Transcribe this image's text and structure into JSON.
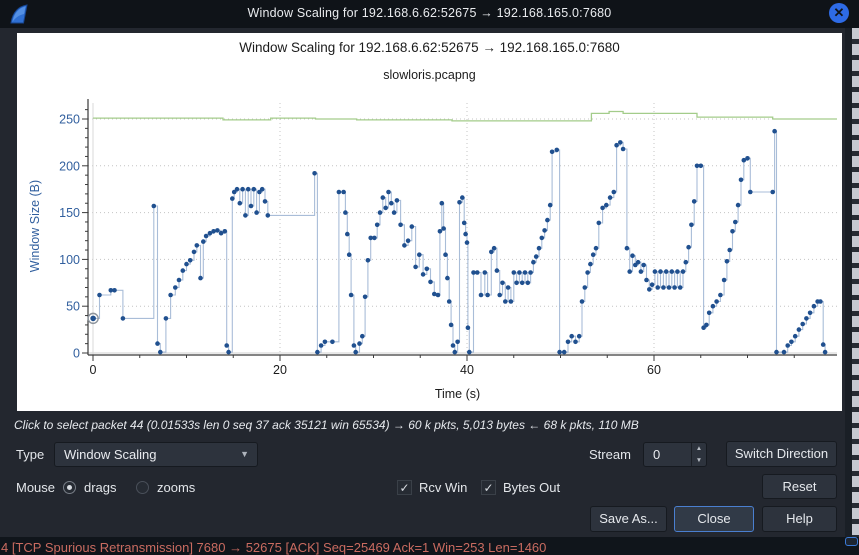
{
  "titlebar": {
    "title": "Window Scaling for 192.168.6.62:52675 → 192.168.165.0:7680",
    "app_icon": "wireshark-fin-icon",
    "close_glyph": "✕"
  },
  "chart_data": {
    "type": "line",
    "title": "Window Scaling for 192.168.6.62:52675 → 192.168.165.0:7680",
    "subtitle": "slowloris.pcapng",
    "xlabel": "Time (s)",
    "ylabel": "Window Size (B)",
    "xlim": [
      0,
      79.5
    ],
    "ylim": [
      0,
      265
    ],
    "x_ticks": [
      0,
      20,
      40,
      60
    ],
    "y_ticks": [
      0,
      50,
      100,
      150,
      200,
      250
    ],
    "x_minor_step": 5,
    "y_minor_step": 10,
    "grid": "dotted",
    "selected_point": [
      0.015,
      37
    ],
    "series": [
      {
        "name": "Rcv Win",
        "style": "step-line",
        "color": "#a3cc8a",
        "points": [
          [
            0,
            251
          ],
          [
            13.6,
            251
          ],
          [
            13.9,
            249
          ],
          [
            19,
            251
          ],
          [
            23.8,
            250
          ],
          [
            28.2,
            249
          ],
          [
            36.4,
            249
          ],
          [
            38.4,
            248
          ],
          [
            52.4,
            248
          ],
          [
            53.3,
            256
          ],
          [
            55.2,
            258
          ],
          [
            56.7,
            256
          ],
          [
            64.6,
            252
          ],
          [
            72.7,
            250
          ],
          [
            79.2,
            250
          ]
        ]
      },
      {
        "name": "Bytes Out",
        "style": "step-dots",
        "color": "#20508f",
        "line_color": "#a9bdd8",
        "points": [
          [
            0,
            37
          ],
          [
            0.7,
            62
          ],
          [
            1.9,
            67
          ],
          [
            2.3,
            67
          ],
          [
            3.2,
            37
          ],
          [
            6.5,
            157
          ],
          [
            6.9,
            10
          ],
          [
            7.2,
            1
          ],
          [
            7.8,
            37
          ],
          [
            8.3,
            62
          ],
          [
            8.8,
            70
          ],
          [
            9.2,
            78
          ],
          [
            9.6,
            88
          ],
          [
            10,
            95
          ],
          [
            10.4,
            99
          ],
          [
            10.8,
            108
          ],
          [
            11.1,
            115
          ],
          [
            11.5,
            80
          ],
          [
            11.8,
            119
          ],
          [
            12.1,
            125
          ],
          [
            12.5,
            128
          ],
          [
            12.9,
            130
          ],
          [
            13.3,
            131
          ],
          [
            13.7,
            128
          ],
          [
            14.1,
            130
          ],
          [
            14.3,
            8
          ],
          [
            14.5,
            1
          ],
          [
            14.9,
            165
          ],
          [
            15.1,
            172
          ],
          [
            15.4,
            175
          ],
          [
            15.7,
            160
          ],
          [
            16,
            175
          ],
          [
            16.3,
            147
          ],
          [
            16.6,
            175
          ],
          [
            16.9,
            157
          ],
          [
            17.2,
            175
          ],
          [
            17.5,
            150
          ],
          [
            17.8,
            172
          ],
          [
            18.1,
            175
          ],
          [
            18.4,
            162
          ],
          [
            18.7,
            147
          ],
          [
            23.7,
            192
          ],
          [
            24,
            1
          ],
          [
            24.4,
            8
          ],
          [
            24.8,
            12
          ],
          [
            25.6,
            12
          ],
          [
            26.3,
            172
          ],
          [
            26.8,
            172
          ],
          [
            27,
            150
          ],
          [
            27.2,
            127
          ],
          [
            27.4,
            105
          ],
          [
            27.6,
            62
          ],
          [
            27.9,
            8
          ],
          [
            28.1,
            1
          ],
          [
            28.5,
            10
          ],
          [
            28.8,
            18
          ],
          [
            29.1,
            60
          ],
          [
            29.4,
            99
          ],
          [
            29.7,
            123
          ],
          [
            30.1,
            123
          ],
          [
            30.4,
            137
          ],
          [
            30.7,
            150
          ],
          [
            31,
            166
          ],
          [
            31.3,
            155
          ],
          [
            31.6,
            172
          ],
          [
            31.9,
            160
          ],
          [
            32.2,
            150
          ],
          [
            32.5,
            163
          ],
          [
            32.9,
            137
          ],
          [
            33.3,
            115
          ],
          [
            33.7,
            120
          ],
          [
            34.1,
            135
          ],
          [
            34.5,
            92
          ],
          [
            34.9,
            105
          ],
          [
            35.3,
            84
          ],
          [
            35.7,
            90
          ],
          [
            36.1,
            76
          ],
          [
            36.5,
            63
          ],
          [
            36.9,
            62
          ],
          [
            37.1,
            130
          ],
          [
            37.3,
            160
          ],
          [
            37.5,
            133
          ],
          [
            37.7,
            105
          ],
          [
            37.9,
            80
          ],
          [
            38.1,
            55
          ],
          [
            38.3,
            30
          ],
          [
            38.5,
            8
          ],
          [
            38.7,
            1
          ],
          [
            39,
            12
          ],
          [
            39.2,
            161
          ],
          [
            39.5,
            166
          ],
          [
            39.7,
            139
          ],
          [
            39.85,
            127
          ],
          [
            40,
            118
          ],
          [
            40.1,
            27
          ],
          [
            40.25,
            1
          ],
          [
            40.7,
            86
          ],
          [
            41.1,
            86
          ],
          [
            41.5,
            62
          ],
          [
            41.9,
            86
          ],
          [
            42.2,
            62
          ],
          [
            42.6,
            108
          ],
          [
            42.9,
            112
          ],
          [
            43.2,
            88
          ],
          [
            43.5,
            62
          ],
          [
            43.8,
            75
          ],
          [
            44.1,
            55
          ],
          [
            44.4,
            70
          ],
          [
            44.7,
            55
          ],
          [
            45,
            86
          ],
          [
            45.3,
            75
          ],
          [
            45.6,
            86
          ],
          [
            45.9,
            75
          ],
          [
            46.2,
            86
          ],
          [
            46.5,
            75
          ],
          [
            46.8,
            86
          ],
          [
            47.1,
            97
          ],
          [
            47.4,
            103
          ],
          [
            47.7,
            112
          ],
          [
            48,
            123
          ],
          [
            48.3,
            131
          ],
          [
            48.6,
            142
          ],
          [
            48.9,
            158
          ],
          [
            49.1,
            215
          ],
          [
            49.6,
            217
          ],
          [
            49.9,
            1
          ],
          [
            50.4,
            1
          ],
          [
            50.8,
            12
          ],
          [
            51.2,
            18
          ],
          [
            51.6,
            12
          ],
          [
            52,
            18
          ],
          [
            52.3,
            55
          ],
          [
            52.6,
            70
          ],
          [
            52.9,
            86
          ],
          [
            53.2,
            95
          ],
          [
            53.5,
            105
          ],
          [
            53.8,
            112
          ],
          [
            54.1,
            139
          ],
          [
            54.5,
            155
          ],
          [
            54.9,
            158
          ],
          [
            55.3,
            166
          ],
          [
            55.7,
            172
          ],
          [
            56,
            222
          ],
          [
            56.4,
            225
          ],
          [
            56.7,
            218
          ],
          [
            57.1,
            112
          ],
          [
            57.4,
            87
          ],
          [
            57.7,
            104
          ],
          [
            58,
            94
          ],
          [
            58.3,
            97
          ],
          [
            58.6,
            87
          ],
          [
            58.9,
            94
          ],
          [
            59.2,
            78
          ],
          [
            59.5,
            68
          ],
          [
            59.8,
            73
          ],
          [
            60.1,
            87
          ],
          [
            60.4,
            70
          ],
          [
            60.7,
            87
          ],
          [
            61,
            70
          ],
          [
            61.3,
            87
          ],
          [
            61.6,
            70
          ],
          [
            61.9,
            87
          ],
          [
            62.2,
            70
          ],
          [
            62.5,
            87
          ],
          [
            62.8,
            70
          ],
          [
            63.1,
            87
          ],
          [
            63.4,
            97
          ],
          [
            63.7,
            113
          ],
          [
            64,
            137
          ],
          [
            64.3,
            162
          ],
          [
            64.6,
            200
          ],
          [
            65,
            200
          ],
          [
            65.3,
            27
          ],
          [
            65.6,
            30
          ],
          [
            65.9,
            43
          ],
          [
            66.3,
            50
          ],
          [
            66.7,
            55
          ],
          [
            67.1,
            62
          ],
          [
            67.5,
            78
          ],
          [
            67.8,
            98
          ],
          [
            68.1,
            110
          ],
          [
            68.4,
            130
          ],
          [
            68.7,
            140
          ],
          [
            69,
            158
          ],
          [
            69.3,
            185
          ],
          [
            69.6,
            206
          ],
          [
            70,
            208
          ],
          [
            70.3,
            172
          ],
          [
            72.7,
            172
          ],
          [
            72.9,
            237
          ],
          [
            73.1,
            1
          ],
          [
            73.9,
            1
          ],
          [
            74.3,
            8
          ],
          [
            74.7,
            12
          ],
          [
            75.1,
            18
          ],
          [
            75.5,
            25
          ],
          [
            75.9,
            31
          ],
          [
            76.3,
            37
          ],
          [
            76.7,
            43
          ],
          [
            77.1,
            50
          ],
          [
            77.5,
            55
          ],
          [
            77.8,
            55
          ],
          [
            78.1,
            9
          ],
          [
            78.3,
            1
          ]
        ]
      }
    ]
  },
  "status_line": "Click to select packet 44 (0.01533s len 0 seq 37 ack 35121 win 65534) → 60 k pkts, 5,013 bytes ← 68 k pkts, 110 MB",
  "controls": {
    "type_label": "Type",
    "type_value": "Window Scaling",
    "stream_label": "Stream",
    "stream_value": "0",
    "switch_direction_label": "Switch Direction",
    "mouse_label": "Mouse",
    "radio_drags_label": "drags",
    "radio_zooms_label": "zooms",
    "check_glyph": "✓",
    "rcv_win_label": "Rcv Win",
    "bytes_out_label": "Bytes Out",
    "reset_label": "Reset",
    "save_as_label": "Save As...",
    "close_label": "Close",
    "help_label": "Help"
  },
  "background_text": "4 [TCP Spurious Retransmission] 7680 → 52675 [ACK] Seq=25469 Ack=1 Win=253 Len=1460",
  "colors": {
    "titlebar_bg": "#0f1318",
    "dialog_bg": "#23272f",
    "close_circle": "#2e6be6",
    "y_axis_text": "#315f9e",
    "x_axis_text": "#1b1b1b",
    "rcv_win_line": "#a3cc8a",
    "bytes_out_dot": "#20508f",
    "bytes_out_line": "#a9bdd8",
    "default_button_border": "#4a7fd0",
    "behind_text": "#c96b60"
  }
}
